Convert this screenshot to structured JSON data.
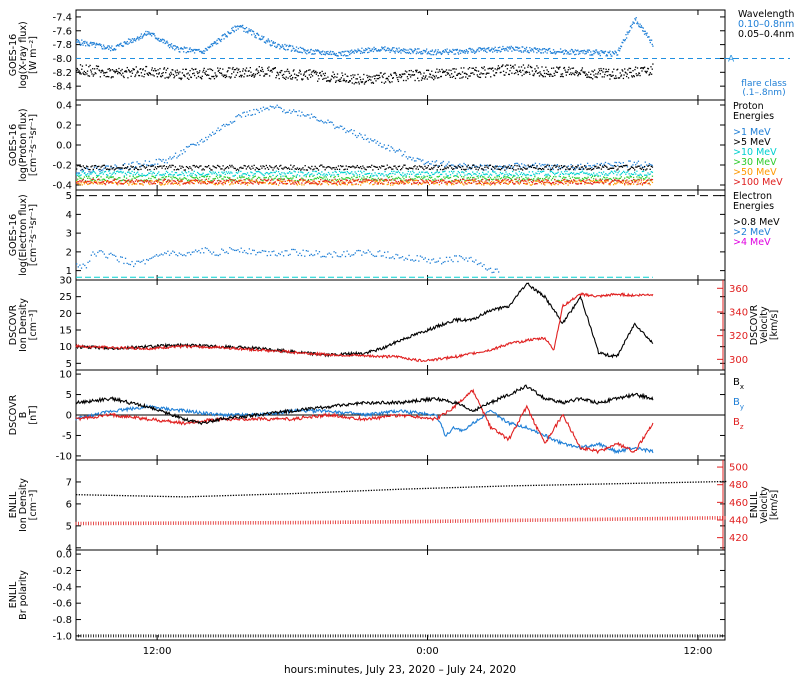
{
  "title": "",
  "xlabel": "hours:minutes, July 23, 2020 – July 24, 2020",
  "x_tick_labels": [
    "12:00",
    "0:00",
    "12:00"
  ],
  "colors": {
    "black": "#000000",
    "blue": "#1f7fd6",
    "cyan": "#00d0d0",
    "green": "#2ecc2e",
    "orange": "#ff9900",
    "red": "#e02020",
    "magenta": "#e000e0",
    "dash_blue": "#1f8fe0"
  },
  "chart_data": [
    {
      "type": "scatter",
      "id": "xray",
      "ylabel": [
        "GOES-16",
        "log(X-ray flux)",
        "[W m⁻²]"
      ],
      "ylim": [
        -8.6,
        -7.3
      ],
      "yticks": [
        -8.4,
        -8.2,
        -8.0,
        -7.8,
        -7.6,
        -7.4
      ],
      "ytick_labels": [
        "-8.4",
        "-8.2",
        "-8.0",
        "-7.8",
        "-7.6",
        "-7.4"
      ],
      "legend_title": "Wavelength",
      "legend": [
        "0.10–0.8nm",
        "0.05–0.4nm"
      ],
      "flare_class_label": "A",
      "flare_class_note": [
        "flare class",
        "(.1–.8nm)"
      ],
      "reference_line": -8.0,
      "series": [
        {
          "name": "0.10–0.8nm",
          "color": "blue",
          "x_hours": [
            0,
            2,
            4,
            5.5,
            7,
            9,
            11,
            13,
            15,
            16.5,
            18,
            20,
            22,
            24,
            26,
            28,
            30,
            31,
            32
          ],
          "y": [
            -7.75,
            -7.85,
            -7.62,
            -7.85,
            -7.9,
            -7.52,
            -7.8,
            -7.9,
            -7.92,
            -7.85,
            -7.88,
            -7.9,
            -7.88,
            -7.85,
            -7.88,
            -7.9,
            -7.92,
            -7.42,
            -7.8
          ]
        },
        {
          "name": "0.05–0.4nm",
          "color": "black",
          "x_hours": [
            0,
            2,
            4,
            6,
            8,
            10,
            12,
            14,
            16,
            18,
            20,
            22,
            24,
            26,
            28,
            30,
            32
          ],
          "y": [
            -8.15,
            -8.2,
            -8.18,
            -8.22,
            -8.2,
            -8.18,
            -8.22,
            -8.25,
            -8.3,
            -8.25,
            -8.22,
            -8.2,
            -8.15,
            -8.18,
            -8.2,
            -8.22,
            -8.15
          ]
        }
      ]
    },
    {
      "type": "scatter",
      "id": "proton",
      "ylabel": [
        "GOES-16",
        "log(Proton flux)",
        "[cm⁻²s⁻¹sr⁻¹]"
      ],
      "ylim": [
        -0.45,
        0.45
      ],
      "yticks": [
        -0.4,
        -0.2,
        0.0,
        0.2,
        0.4
      ],
      "ytick_labels": [
        "-0.4",
        "-0.2",
        "0.0",
        "0.2",
        "0.4"
      ],
      "legend_title": [
        "Proton",
        "Energies"
      ],
      "legend": [
        ">1 MeV",
        ">5 MeV",
        ">10 MeV",
        ">30 MeV",
        ">50 MeV",
        ">100 MeV"
      ],
      "series": [
        {
          "name": ">1 MeV",
          "color": "blue",
          "x_hours": [
            0,
            3,
            5,
            7,
            9,
            11,
            13,
            15,
            17,
            19,
            21,
            23,
            25,
            27,
            29,
            31,
            32
          ],
          "y": [
            -0.25,
            -0.2,
            -0.15,
            0.05,
            0.3,
            0.38,
            0.3,
            0.15,
            0.0,
            -0.15,
            -0.2,
            -0.22,
            -0.2,
            -0.22,
            -0.2,
            -0.18,
            -0.2
          ]
        },
        {
          "name": ">5 MeV",
          "color": "black",
          "level": -0.22
        },
        {
          "name": ">10 MeV",
          "color": "cyan",
          "level": -0.28
        },
        {
          "name": ">30 MeV",
          "color": "green",
          "level": -0.33
        },
        {
          "name": ">50 MeV",
          "color": "orange",
          "level": -0.37
        },
        {
          "name": ">100 MeV",
          "color": "red",
          "level": -0.36
        }
      ]
    },
    {
      "type": "scatter",
      "id": "electron",
      "ylabel": [
        "GOES-16",
        "log(Electron flux)",
        "[cm⁻²s⁻¹sr⁻¹]"
      ],
      "ylim": [
        0.5,
        5.3
      ],
      "yticks": [
        1,
        2,
        3,
        4,
        5
      ],
      "ytick_labels": [
        "1",
        "2",
        "3",
        "4",
        "5"
      ],
      "legend_title": [
        "Electron",
        "Energies"
      ],
      "legend": [
        ">0.8 MeV",
        ">2 MeV",
        ">4 MeV"
      ],
      "series": [
        {
          "name": ">0.8 MeV",
          "color": "black",
          "level": 5.0
        },
        {
          "name": ">2 MeV",
          "color": "blue",
          "x_hours": [
            0.5,
            1,
            2,
            3,
            4,
            5,
            6,
            7,
            8,
            9,
            10,
            12,
            14,
            16,
            18,
            20,
            21,
            22,
            23
          ],
          "y": [
            1.3,
            2.0,
            1.8,
            1.4,
            1.5,
            2.0,
            1.8,
            2.1,
            2.0,
            2.2,
            2.0,
            2.0,
            1.9,
            2.0,
            1.8,
            1.5,
            1.7,
            1.6,
            1.0
          ]
        },
        {
          "name": ">4 MeV",
          "color": "magenta"
        }
      ],
      "cyan_floor": 0.65
    },
    {
      "type": "line",
      "id": "ion_dscovr",
      "ylabel": [
        "DSCOVR",
        "Ion Density",
        "[cm⁻³]"
      ],
      "ylim": [
        3,
        30
      ],
      "yticks": [
        5,
        10,
        15,
        20,
        25,
        30
      ],
      "ytick_labels": [
        "5",
        "10",
        "15",
        "20",
        "25",
        "30"
      ],
      "right_ylabel": [
        "DSCOVR",
        "Velocity",
        "[km/s]"
      ],
      "right_ylim": [
        291,
        367
      ],
      "right_yticks": [
        300,
        320,
        340,
        360
      ],
      "right_ytick_labels": [
        "300",
        "320",
        "340",
        "360"
      ],
      "series": [
        {
          "name": "Ion Density",
          "color": "black",
          "x_hours": [
            0,
            2,
            4,
            6,
            8,
            10,
            12,
            14,
            16,
            17,
            18,
            19,
            20,
            21,
            22,
            23,
            24,
            25,
            26,
            27,
            28,
            29,
            30,
            31,
            32
          ],
          "y": [
            10,
            9.5,
            10,
            10.5,
            10,
            9.5,
            8.5,
            7.5,
            8,
            9.5,
            12,
            14,
            16,
            18,
            18,
            21,
            22,
            29,
            25,
            17,
            25,
            8,
            7,
            17,
            11
          ]
        },
        {
          "name": "Velocity",
          "color": "red",
          "axis": "right",
          "x_hours": [
            0,
            2,
            4,
            6,
            8,
            10,
            12,
            14,
            16,
            18,
            19,
            20,
            21,
            22,
            23,
            24,
            25,
            26,
            26.5,
            27,
            28,
            29,
            30,
            31,
            32
          ],
          "y": [
            311,
            310,
            309,
            311,
            310,
            308,
            306,
            304,
            303,
            302,
            299,
            300,
            302,
            305,
            308,
            313,
            316,
            318,
            308,
            345,
            355,
            353,
            355,
            354,
            355
          ]
        }
      ]
    },
    {
      "type": "line",
      "id": "bfield_dscovr",
      "ylabel": [
        "DSCOVR",
        "B",
        "[nT]"
      ],
      "ylim": [
        -11,
        11
      ],
      "yticks": [
        -10,
        -5,
        0,
        5,
        10
      ],
      "ytick_labels": [
        "-10",
        "-5",
        "0",
        "5",
        "10"
      ],
      "legend": [
        "Bx",
        "By",
        "Bz"
      ],
      "series": [
        {
          "name": "Bx",
          "color": "black",
          "x_hours": [
            0,
            2,
            4,
            6,
            7,
            8,
            10,
            12,
            14,
            16,
            18,
            20,
            21,
            22,
            23,
            24,
            25,
            26,
            27,
            28,
            29,
            30,
            31,
            32
          ],
          "y": [
            3,
            4,
            2,
            -1,
            -2,
            -1,
            0,
            1,
            2,
            3,
            3,
            4,
            3,
            1,
            3,
            5,
            7,
            4,
            3,
            4,
            3,
            4,
            5,
            4
          ]
        },
        {
          "name": "By",
          "color": "blue",
          "x_hours": [
            0,
            2,
            4,
            6,
            8,
            10,
            12,
            14,
            16,
            18,
            20,
            20.5,
            21,
            21.5,
            22,
            23,
            24,
            25,
            26,
            27,
            28,
            29,
            30,
            31,
            32
          ],
          "y": [
            -1,
            1,
            2,
            1,
            0,
            0,
            1,
            1,
            0,
            1,
            0,
            -5,
            -3,
            -4,
            -2,
            1,
            -2,
            -3,
            -5,
            -7,
            -8,
            -7,
            -9,
            -8,
            -9
          ]
        },
        {
          "name": "Bz",
          "color": "red",
          "x_hours": [
            0,
            2,
            4,
            6,
            8,
            10,
            12,
            14,
            16,
            18,
            20,
            21,
            22,
            23,
            24,
            25,
            26,
            27,
            28,
            29,
            30,
            31,
            32
          ],
          "y": [
            -1,
            0,
            -1,
            -2,
            -1,
            -1,
            -1,
            0,
            -1,
            0,
            -1,
            2,
            6,
            -3,
            -6,
            2,
            -7,
            0,
            -8,
            -9,
            -7,
            -9,
            -2
          ]
        }
      ]
    },
    {
      "type": "line",
      "id": "ion_enlil",
      "ylabel": [
        "ENLIL",
        "Ion Density",
        "[cm⁻³]"
      ],
      "ylim": [
        3.9,
        8.0
      ],
      "yticks": [
        4,
        5,
        6,
        7
      ],
      "ytick_labels": [
        "4",
        "5",
        "6",
        "7"
      ],
      "right_ylabel": [
        "ENLIL",
        "Velocity",
        "[km/s]"
      ],
      "right_ylim": [
        406,
        508
      ],
      "right_yticks": [
        420,
        440,
        460,
        480,
        500
      ],
      "right_ytick_labels": [
        "420",
        "440",
        "460",
        "480",
        "500"
      ],
      "series": [
        {
          "name": "Ion Density",
          "color": "black",
          "x_hours": [
            0,
            6,
            12,
            18,
            24,
            30,
            36
          ],
          "y": [
            6.45,
            6.35,
            6.5,
            6.7,
            6.85,
            6.95,
            7.05
          ]
        },
        {
          "name": "Velocity",
          "color": "red",
          "axis": "right",
          "x_hours": [
            0,
            6,
            12,
            18,
            24,
            30,
            36
          ],
          "y": [
            436,
            436.5,
            437,
            438,
            439.5,
            441,
            442.5
          ]
        }
      ]
    },
    {
      "type": "line",
      "id": "polarity_enlil",
      "ylabel": [
        "ENLIL",
        "Br polarity"
      ],
      "ylim": [
        -1.05,
        0.05
      ],
      "yticks": [
        -1.0,
        -0.8,
        -0.6,
        -0.4,
        -0.2,
        0.0
      ],
      "ytick_labels": [
        "-1.0",
        "-0.8",
        "-0.6",
        "-0.4",
        "-0.2",
        "0.0"
      ],
      "series": [
        {
          "name": "Br polarity",
          "color": "black",
          "x_hours": [
            0,
            36
          ],
          "y": [
            -1.0,
            -1.0
          ]
        }
      ]
    }
  ],
  "x_axis": {
    "range_hours": [
      0,
      36
    ],
    "ticks_hours": [
      4.5,
      19.5,
      34.5
    ]
  }
}
